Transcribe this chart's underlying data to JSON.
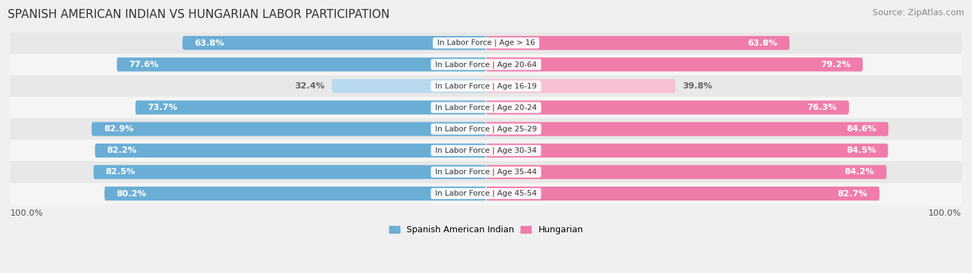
{
  "title": "SPANISH AMERICAN INDIAN VS HUNGARIAN LABOR PARTICIPATION",
  "source": "Source: ZipAtlas.com",
  "categories": [
    "In Labor Force | Age > 16",
    "In Labor Force | Age 20-64",
    "In Labor Force | Age 16-19",
    "In Labor Force | Age 20-24",
    "In Labor Force | Age 25-29",
    "In Labor Force | Age 30-34",
    "In Labor Force | Age 35-44",
    "In Labor Force | Age 45-54"
  ],
  "spanish_values": [
    63.8,
    77.6,
    32.4,
    73.7,
    82.9,
    82.2,
    82.5,
    80.2
  ],
  "hungarian_values": [
    63.8,
    79.2,
    39.8,
    76.3,
    84.6,
    84.5,
    84.2,
    82.7
  ],
  "spanish_color": "#6aaed6",
  "hungarian_color": "#f07caa",
  "spanish_color_light": "#b8d9ee",
  "hungarian_color_light": "#f8c0d4",
  "background_color": "#f0f0f0",
  "row_bg_even": "#e8e8e8",
  "row_bg_odd": "#f5f5f5",
  "label_color_white": "#ffffff",
  "label_color_dark": "#666666",
  "max_value": 100.0,
  "legend_labels": [
    "Spanish American Indian",
    "Hungarian"
  ],
  "x_label": "100.0%",
  "title_fontsize": 12,
  "source_fontsize": 9,
  "bar_label_fontsize": 9,
  "category_fontsize": 8,
  "legend_fontsize": 9,
  "bar_height": 0.62,
  "small_threshold": 50
}
